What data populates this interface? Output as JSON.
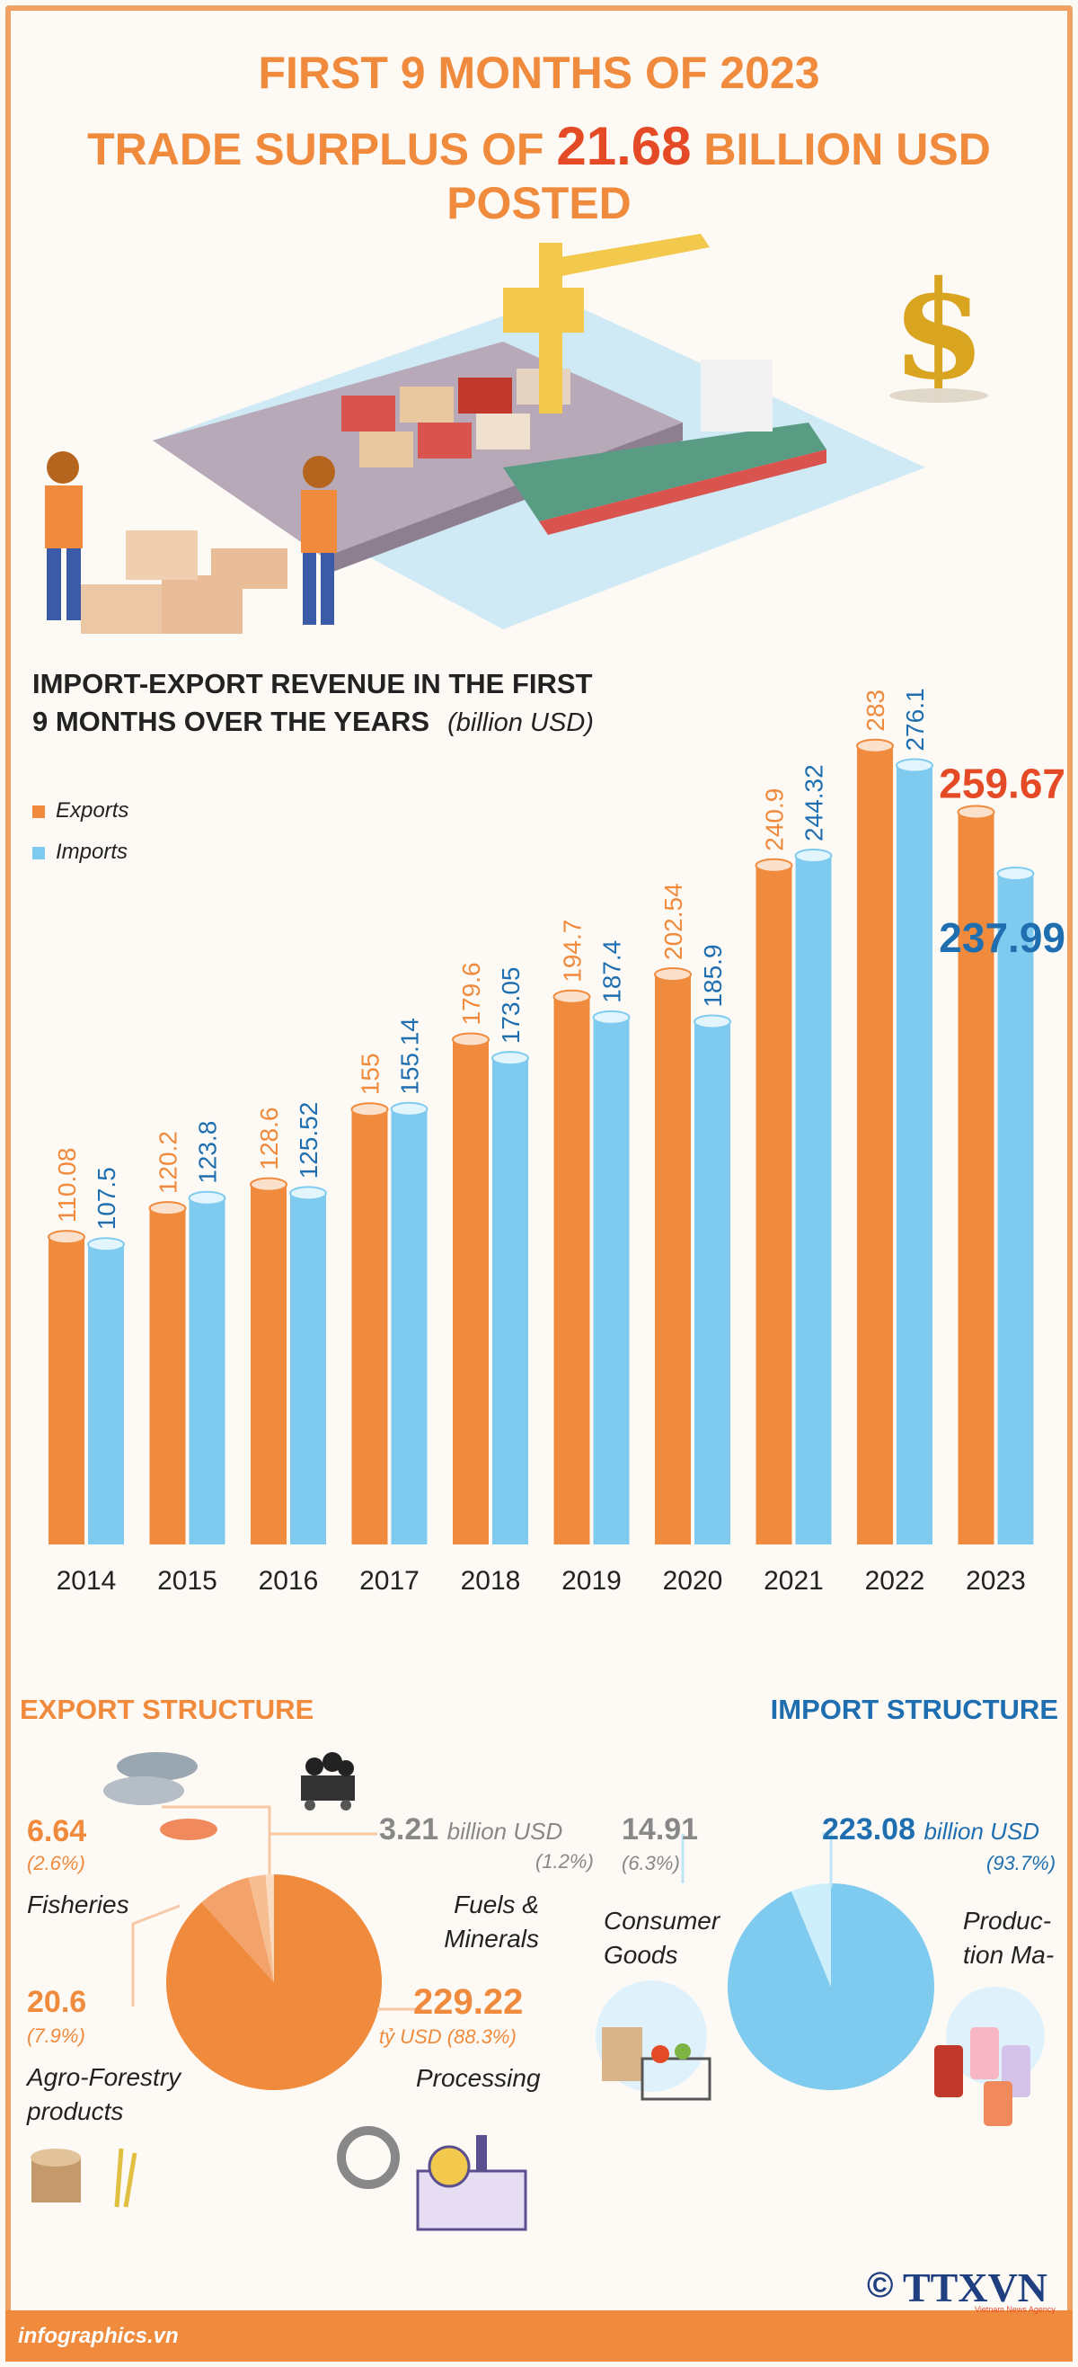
{
  "header": {
    "line1": "FIRST 9 MONTHS OF 2023",
    "line2_before": "TRADE SURPLUS OF ",
    "line2_value": "21.68",
    "line2_after": " BILLION USD POSTED"
  },
  "chart_data": [
    {
      "type": "bar",
      "title": "IMPORT-EXPORT REVENUE IN THE FIRST 9 MONTHS OVER THE YEARS",
      "title_line1": "IMPORT-EXPORT REVENUE IN THE FIRST",
      "title_line2": "9 MONTHS OVER THE YEARS",
      "unit": "(billion USD)",
      "categories": [
        "2014",
        "2015",
        "2016",
        "2017",
        "2018",
        "2019",
        "2020",
        "2021",
        "2022",
        "2023"
      ],
      "series": [
        {
          "name": "Exports",
          "color": "#f08a3c",
          "values": [
            110.08,
            120.2,
            128.6,
            155,
            179.6,
            194.7,
            202.54,
            240.9,
            283,
            259.67
          ],
          "labels": [
            "110.08",
            "120.2",
            "128.6",
            "155",
            "179.6",
            "194.7",
            "202.54",
            "240.9",
            "283",
            "259.67"
          ]
        },
        {
          "name": "Imports",
          "color": "#7fcbef",
          "values": [
            107.5,
            123.8,
            125.52,
            155.14,
            173.05,
            187.4,
            185.9,
            244.32,
            276.1,
            237.99
          ],
          "labels": [
            "107.5",
            "123.8",
            "125.52",
            "155.14",
            "173.05",
            "187.4",
            "185.9",
            "244.32",
            "276.1",
            "237.99"
          ]
        }
      ],
      "ylim": [
        0,
        300
      ],
      "legend_position": "top-left",
      "highlight_colors": {
        "exports": "#e44a25",
        "imports": "#1f6fb0"
      }
    },
    {
      "type": "pie",
      "title": "EXPORT STRUCTURE",
      "slices": [
        {
          "label": "Processing",
          "value": 229.22,
          "value_text": "229.22",
          "pct": "tỷ USD (88.3%)",
          "color": "#f08a3c"
        },
        {
          "label": "Agro-Forestry products",
          "value": 20.6,
          "value_text": "20.6",
          "pct": "(7.9%)",
          "color": "#f3a26a"
        },
        {
          "label": "Fisheries",
          "value": 6.64,
          "value_text": "6.64",
          "pct": "(2.6%)",
          "color": "#f7be92"
        },
        {
          "label": "Fuels & Minerals",
          "value": 3.21,
          "value_text": "3.21",
          "unit": "billion USD",
          "pct": "(1.2%)",
          "color": "#fadcc2"
        }
      ]
    },
    {
      "type": "pie",
      "title": "IMPORT STRUCTURE",
      "slices": [
        {
          "label": "Produc-tion Ma-",
          "value": 223.08,
          "value_text": "223.08",
          "unit": "billion USD",
          "pct": "(93.7%)",
          "color": "#7fcbef"
        },
        {
          "label": "Consumer Goods",
          "value": 14.91,
          "value_text": "14.91",
          "pct": "(6.3%)",
          "color": "#cdeefb"
        }
      ]
    }
  ],
  "export_labels": {
    "fisheries_line1": "Fisheries",
    "fuels_line1": "Fuels &",
    "fuels_line2": "Minerals",
    "agro_line1": "Agro-Forestry",
    "agro_line2": "products",
    "processing_line1": "Processing"
  },
  "import_labels": {
    "consumer_line1": "Consumer",
    "consumer_line2": "Goods",
    "production_line1": "Produc-",
    "production_line2": "tion Ma-"
  },
  "footer": {
    "site": "infographics.vn",
    "copyright": "©",
    "brand": "TTXVN",
    "brand_sub": "Vietnam News Agency"
  }
}
